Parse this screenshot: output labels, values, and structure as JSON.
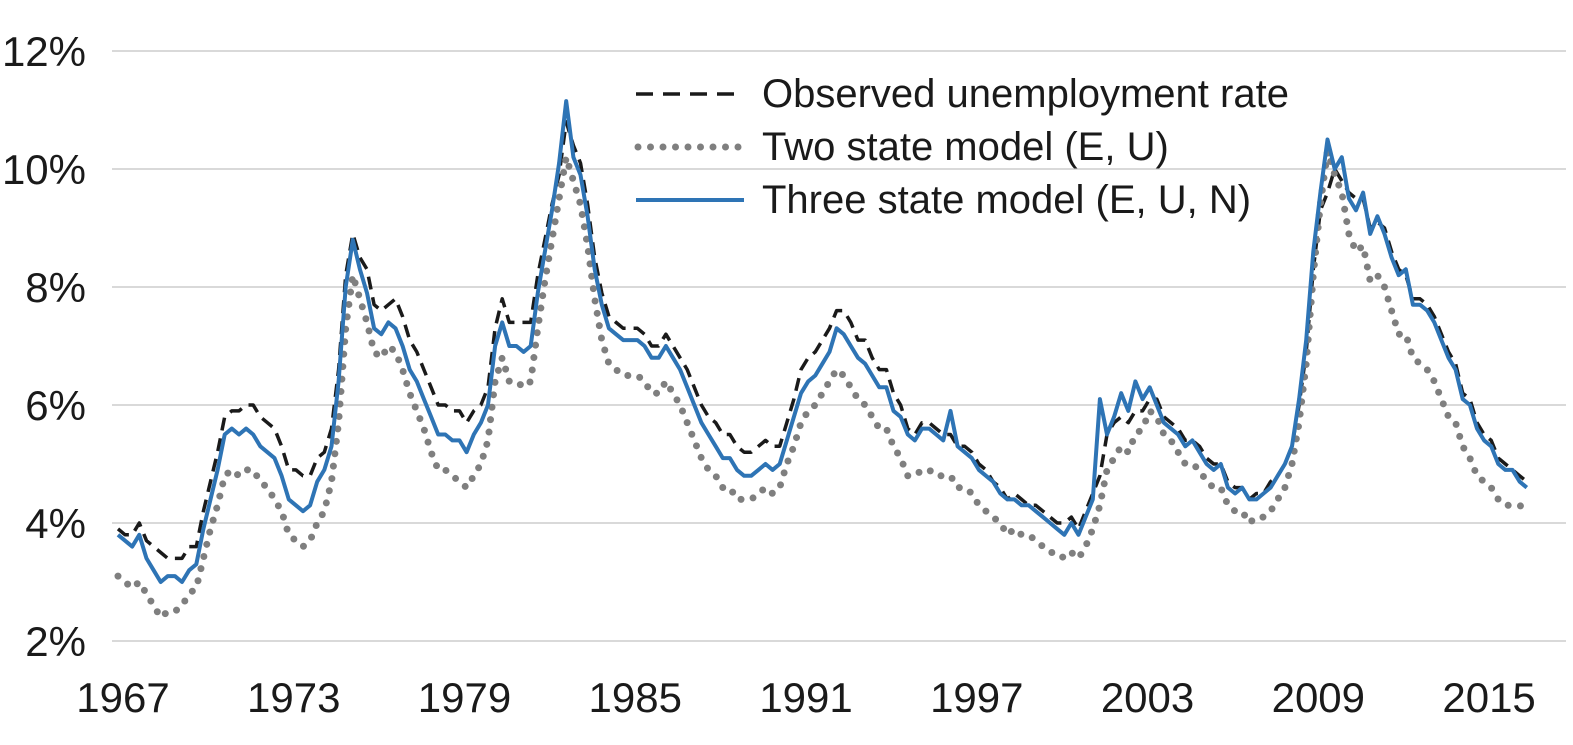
{
  "chart_data": {
    "type": "line",
    "title": "",
    "xlabel": "",
    "ylabel": "",
    "unit": "percent",
    "grid": "horizontal",
    "background": "#FFFFFF",
    "gridline_color": "#D9D9D9",
    "text_color": "#1A1A1A",
    "legend_position": "inside-top-center",
    "y_ticks": [
      "2%",
      "4%",
      "6%",
      "8%",
      "10%",
      "12%"
    ],
    "y_tick_values": [
      2,
      4,
      6,
      8,
      10,
      12
    ],
    "ylim": [
      2,
      12
    ],
    "x_tick_years": [
      1967,
      1973,
      1979,
      1985,
      1991,
      1997,
      2003,
      2009,
      2015
    ],
    "x_start": 1967.0,
    "x_step": 0.25,
    "x_end": 2016.5,
    "series": [
      {
        "name": "Observed unemployment rate",
        "style": "dashed",
        "color": "#1A1A1A",
        "values": [
          3.9,
          3.8,
          3.8,
          4.0,
          3.7,
          3.6,
          3.5,
          3.4,
          3.4,
          3.4,
          3.6,
          3.6,
          4.2,
          4.7,
          5.2,
          5.8,
          5.9,
          5.9,
          6.0,
          6.0,
          5.8,
          5.7,
          5.6,
          5.3,
          4.9,
          4.9,
          4.8,
          4.8,
          5.1,
          5.2,
          5.6,
          6.6,
          8.2,
          8.9,
          8.5,
          8.3,
          7.7,
          7.6,
          7.7,
          7.8,
          7.5,
          7.1,
          6.9,
          6.6,
          6.3,
          6.0,
          6.0,
          5.9,
          5.9,
          5.7,
          5.9,
          6.0,
          6.3,
          7.3,
          7.8,
          7.4,
          7.4,
          7.4,
          7.4,
          8.2,
          8.8,
          9.4,
          9.9,
          10.8,
          10.4,
          10.1,
          9.4,
          8.5,
          7.9,
          7.5,
          7.4,
          7.3,
          7.3,
          7.3,
          7.2,
          7.0,
          7.0,
          7.2,
          7.0,
          6.8,
          6.6,
          6.3,
          6.0,
          5.8,
          5.7,
          5.5,
          5.5,
          5.3,
          5.2,
          5.2,
          5.3,
          5.4,
          5.3,
          5.3,
          5.7,
          6.1,
          6.6,
          6.8,
          6.9,
          7.1,
          7.3,
          7.6,
          7.6,
          7.4,
          7.1,
          7.1,
          6.8,
          6.6,
          6.6,
          6.2,
          6.0,
          5.6,
          5.5,
          5.7,
          5.7,
          5.6,
          5.5,
          5.5,
          5.3,
          5.3,
          5.2,
          5.0,
          4.9,
          4.7,
          4.6,
          4.4,
          4.5,
          4.4,
          4.3,
          4.3,
          4.2,
          4.1,
          4.0,
          4.0,
          4.1,
          3.9,
          4.2,
          4.5,
          4.8,
          5.5,
          5.7,
          5.8,
          5.7,
          5.9,
          5.9,
          6.1,
          6.1,
          5.8,
          5.7,
          5.6,
          5.4,
          5.4,
          5.3,
          5.1,
          5.0,
          5.0,
          4.7,
          4.6,
          4.6,
          4.4,
          4.5,
          4.5,
          4.7,
          4.8,
          5.0,
          5.3,
          6.0,
          6.9,
          8.3,
          9.3,
          9.6,
          10.0,
          9.8,
          9.6,
          9.5,
          9.5,
          9.0,
          9.1,
          9.0,
          8.6,
          8.3,
          8.2,
          7.8,
          7.8,
          7.7,
          7.5,
          7.2,
          6.9,
          6.7,
          6.2,
          6.1,
          5.7,
          5.5,
          5.4,
          5.1,
          5.0,
          4.9,
          4.8,
          4.7
        ]
      },
      {
        "name": "Two state model (E, U)",
        "style": "dotted",
        "color": "#7F7F7F",
        "values": [
          3.1,
          3.0,
          2.9,
          3.0,
          2.8,
          2.6,
          2.4,
          2.5,
          2.5,
          2.6,
          2.8,
          2.9,
          3.4,
          3.9,
          4.3,
          4.8,
          4.9,
          4.8,
          4.9,
          4.9,
          4.7,
          4.6,
          4.4,
          4.2,
          3.8,
          3.7,
          3.6,
          3.7,
          4.0,
          4.2,
          4.7,
          5.7,
          7.3,
          8.2,
          7.8,
          7.4,
          6.9,
          6.8,
          7.0,
          6.9,
          6.6,
          6.2,
          5.9,
          5.6,
          5.2,
          4.9,
          4.9,
          4.8,
          4.7,
          4.6,
          4.8,
          5.0,
          5.4,
          6.4,
          6.8,
          6.4,
          6.4,
          6.3,
          6.4,
          7.3,
          8.1,
          8.8,
          9.5,
          10.2,
          9.8,
          9.4,
          8.7,
          7.8,
          7.1,
          6.7,
          6.6,
          6.5,
          6.5,
          6.5,
          6.4,
          6.2,
          6.2,
          6.4,
          6.2,
          6.0,
          5.7,
          5.4,
          5.1,
          4.9,
          4.8,
          4.6,
          4.6,
          4.4,
          4.4,
          4.4,
          4.5,
          4.6,
          4.5,
          4.6,
          5.0,
          5.3,
          5.7,
          5.9,
          6.0,
          6.2,
          6.4,
          6.6,
          6.5,
          6.3,
          6.1,
          6.0,
          5.8,
          5.6,
          5.6,
          5.3,
          5.1,
          4.8,
          4.8,
          4.9,
          4.9,
          4.8,
          4.8,
          4.8,
          4.6,
          4.6,
          4.5,
          4.3,
          4.2,
          4.1,
          4.0,
          3.8,
          3.9,
          3.8,
          3.8,
          3.7,
          3.6,
          3.5,
          3.5,
          3.4,
          3.5,
          3.4,
          3.6,
          3.9,
          4.3,
          4.9,
          5.1,
          5.3,
          5.2,
          5.5,
          5.6,
          5.9,
          5.8,
          5.5,
          5.4,
          5.2,
          5.0,
          5.0,
          4.9,
          4.7,
          4.6,
          4.6,
          4.3,
          4.2,
          4.2,
          4.0,
          4.1,
          4.1,
          4.2,
          4.4,
          4.6,
          5.0,
          5.7,
          6.7,
          8.2,
          9.4,
          10.3,
          9.9,
          9.6,
          8.9,
          8.6,
          8.7,
          8.1,
          8.2,
          8.0,
          7.6,
          7.2,
          7.2,
          6.8,
          6.7,
          6.6,
          6.4,
          6.1,
          5.8,
          5.7,
          5.3,
          5.1,
          4.8,
          4.7,
          4.6,
          4.4,
          4.3,
          4.3,
          4.3,
          4.2
        ]
      },
      {
        "name": "Three state model (E, U, N)",
        "style": "solid",
        "color": "#2E74B5",
        "values": [
          3.8,
          3.7,
          3.6,
          3.8,
          3.4,
          3.2,
          3.0,
          3.1,
          3.1,
          3.0,
          3.2,
          3.3,
          3.9,
          4.4,
          4.9,
          5.5,
          5.6,
          5.5,
          5.6,
          5.5,
          5.3,
          5.2,
          5.1,
          4.8,
          4.4,
          4.3,
          4.2,
          4.3,
          4.7,
          4.9,
          5.3,
          6.4,
          8.0,
          8.8,
          8.3,
          7.9,
          7.3,
          7.2,
          7.4,
          7.3,
          7.0,
          6.6,
          6.4,
          6.1,
          5.8,
          5.5,
          5.5,
          5.4,
          5.4,
          5.2,
          5.5,
          5.7,
          6.0,
          7.0,
          7.4,
          7.0,
          7.0,
          6.9,
          7.0,
          7.9,
          8.6,
          9.3,
          10.1,
          11.15,
          10.2,
          9.9,
          9.2,
          8.3,
          7.7,
          7.3,
          7.2,
          7.1,
          7.1,
          7.1,
          7.0,
          6.8,
          6.8,
          7.0,
          6.8,
          6.6,
          6.3,
          6.0,
          5.7,
          5.5,
          5.3,
          5.1,
          5.1,
          4.9,
          4.8,
          4.8,
          4.9,
          5.0,
          4.9,
          5.0,
          5.4,
          5.8,
          6.2,
          6.4,
          6.5,
          6.7,
          6.9,
          7.3,
          7.2,
          7.0,
          6.8,
          6.7,
          6.5,
          6.3,
          6.3,
          5.9,
          5.8,
          5.5,
          5.4,
          5.6,
          5.6,
          5.5,
          5.4,
          5.9,
          5.3,
          5.2,
          5.1,
          4.9,
          4.8,
          4.7,
          4.5,
          4.4,
          4.4,
          4.3,
          4.3,
          4.2,
          4.1,
          4.0,
          3.9,
          3.8,
          4.0,
          3.8,
          4.1,
          4.4,
          6.1,
          5.5,
          5.8,
          6.2,
          5.9,
          6.4,
          6.1,
          6.3,
          6.0,
          5.7,
          5.6,
          5.5,
          5.3,
          5.4,
          5.2,
          5.0,
          4.9,
          5.0,
          4.6,
          4.5,
          4.6,
          4.4,
          4.4,
          4.5,
          4.6,
          4.8,
          5.0,
          5.3,
          6.1,
          7.1,
          8.6,
          9.6,
          10.5,
          10.0,
          10.2,
          9.5,
          9.3,
          9.6,
          8.9,
          9.2,
          8.9,
          8.5,
          8.2,
          8.3,
          7.7,
          7.7,
          7.6,
          7.4,
          7.1,
          6.8,
          6.6,
          6.1,
          6.0,
          5.6,
          5.4,
          5.3,
          5.0,
          4.9,
          4.9,
          4.7,
          4.6
        ]
      }
    ]
  }
}
